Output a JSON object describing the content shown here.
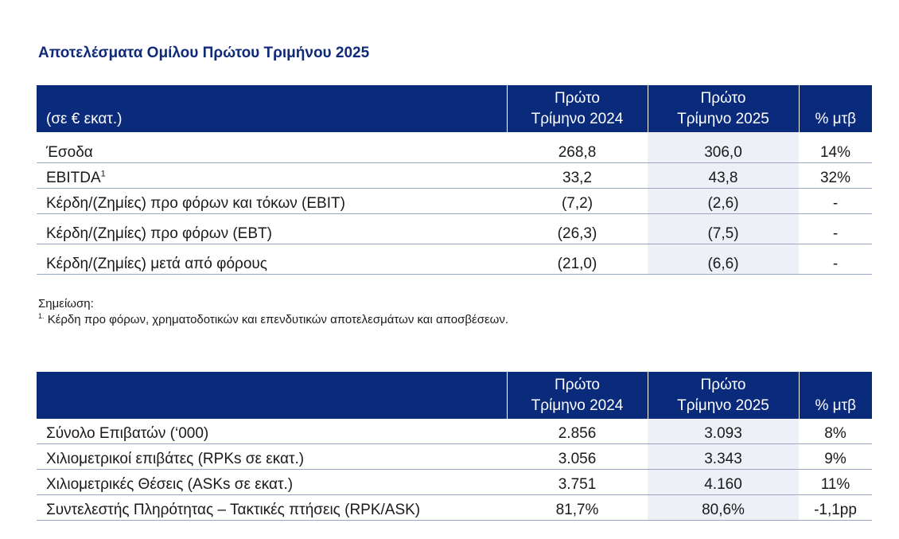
{
  "title": "Αποτελέσματα Ομίλου Πρώτου Τριμήνου 2025",
  "table1": {
    "headers": {
      "label": "(σε € εκατ.)",
      "col1_line1": "Πρώτο",
      "col1_line2": "Τρίμηνο 2024",
      "col2_line1": "Πρώτο",
      "col2_line2": "Τρίμηνο 2025",
      "col3": "% μτβ"
    },
    "rows": [
      {
        "label": "Έσοδα",
        "sup": "",
        "v2024": "268,8",
        "v2025": "306,0",
        "change": "14%"
      },
      {
        "label": "EBITDA",
        "sup": "1",
        "v2024": "33,2",
        "v2025": "43,8",
        "change": "32%"
      },
      {
        "label": "Κέρδη/(Ζημίες) προ φόρων και τόκων (EBIT)",
        "sup": "",
        "v2024": "(7,2)",
        "v2025": "(2,6)",
        "change": "-"
      },
      {
        "label": "Κέρδη/(Ζημίες) προ φόρων (EBT)",
        "sup": "",
        "v2024": "(26,3)",
        "v2025": "(7,5)",
        "change": "-"
      },
      {
        "label": "Κέρδη/(Ζημίες) μετά από φόρους",
        "sup": "",
        "v2024": "(21,0)",
        "v2025": "(6,6)",
        "change": "-"
      }
    ]
  },
  "note": {
    "heading": "Σημείωση:",
    "footnote_marker": "1.",
    "footnote_text": "Κέρδη προ φόρων, χρηματοδοτικών και επενδυτικών αποτελεσμάτων και αποσβέσεων."
  },
  "table2": {
    "headers": {
      "label": "",
      "col1_line1": "Πρώτο",
      "col1_line2": "Τρίμηνο 2024",
      "col2_line1": "Πρώτο",
      "col2_line2": "Τρίμηνο 2025",
      "col3": "% μτβ"
    },
    "rows": [
      {
        "label": "Σύνολο Επιβατών (‘000)",
        "v2024": "2.856",
        "v2025": "3.093",
        "change": "8%"
      },
      {
        "label": "Χιλιομετρικοί επιβάτες (RPKs σε εκατ.)",
        "v2024": "3.056",
        "v2025": "3.343",
        "change": "9%"
      },
      {
        "label": "Χιλιομετρικές Θέσεις (ASKs σε εκατ.)",
        "v2024": "3.751",
        "v2025": "4.160",
        "change": "11%"
      },
      {
        "label": "Συντελεστής Πληρότητας – Τακτικές πτήσεις (RPK/ASK)",
        "v2024": "81,7%",
        "v2025": "80,6%",
        "change": "-1,1pp"
      }
    ]
  },
  "colors": {
    "header_bg": "#0a2a7c",
    "title": "#0f2a78",
    "highlight_col": "#eef0f8",
    "row_border": "#9aa6c4"
  }
}
